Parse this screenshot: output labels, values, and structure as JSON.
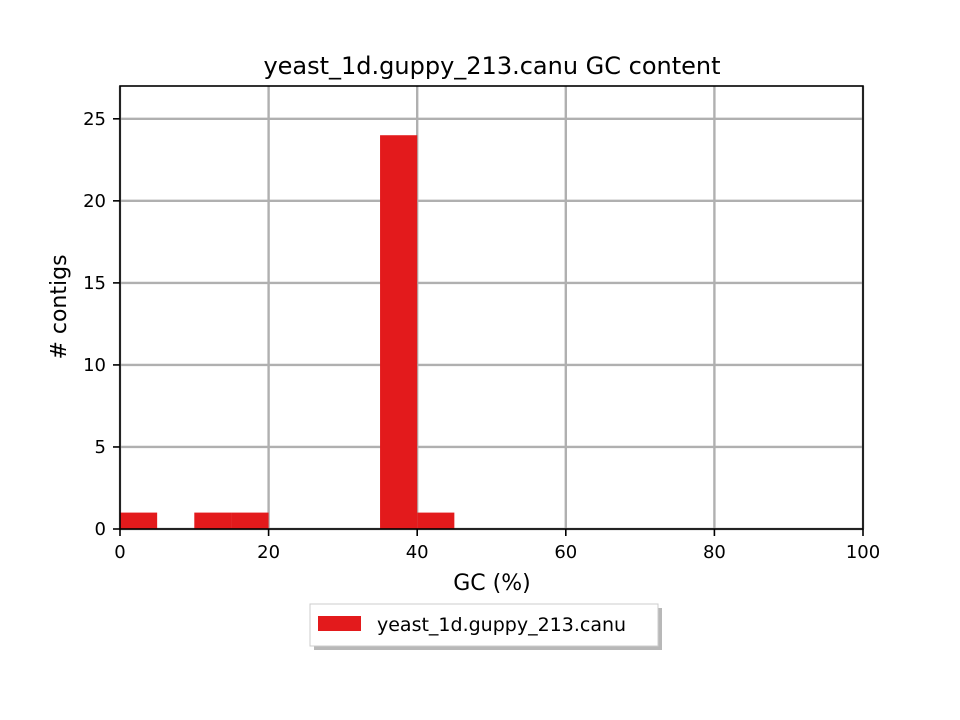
{
  "chart_data": {
    "type": "bar",
    "title": "yeast_1d.guppy_213.canu GC content",
    "xlabel": "GC (%)",
    "ylabel": "# contigs",
    "xlim": [
      0,
      100
    ],
    "ylim": [
      0,
      27
    ],
    "xticks": [
      0,
      20,
      40,
      60,
      80,
      100
    ],
    "yticks": [
      0,
      5,
      10,
      15,
      20,
      25
    ],
    "grid": true,
    "legend_position": "bottom-center",
    "series": [
      {
        "name": "yeast_1d.guppy_213.canu",
        "color": "#e31a1c",
        "bins": [
          {
            "start": 0,
            "end": 5,
            "count": 1
          },
          {
            "start": 10,
            "end": 15,
            "count": 1
          },
          {
            "start": 15,
            "end": 20,
            "count": 1
          },
          {
            "start": 35,
            "end": 40,
            "count": 24
          },
          {
            "start": 40,
            "end": 45,
            "count": 1
          }
        ]
      }
    ]
  }
}
